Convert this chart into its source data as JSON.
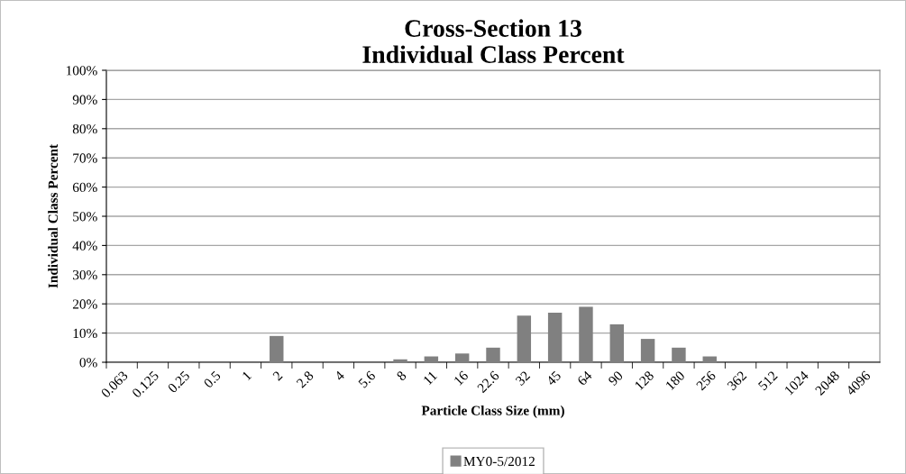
{
  "chart_data": {
    "type": "bar",
    "title": "Cross-Section 13\nIndividual Class Percent",
    "xlabel": "Particle Class Size (mm)",
    "ylabel": "Individual Class Percent",
    "categories": [
      "0.063",
      "0.125",
      "0.25",
      "0.5",
      "1",
      "2",
      "2.8",
      "4",
      "5.6",
      "8",
      "11",
      "16",
      "22.6",
      "32",
      "45",
      "64",
      "90",
      "128",
      "180",
      "256",
      "362",
      "512",
      "1024",
      "2048",
      "4096"
    ],
    "series": [
      {
        "name": "MY0-5/2012",
        "color": "#808080",
        "values": [
          0,
          0,
          0,
          0,
          0,
          9,
          0,
          0,
          0,
          1,
          2,
          3,
          5,
          16,
          17,
          19,
          13,
          8,
          5,
          2,
          0,
          0,
          0,
          0,
          0
        ]
      }
    ],
    "ylim": [
      0,
      100
    ],
    "yticks": [
      {
        "value": 0,
        "label": "0%"
      },
      {
        "value": 10,
        "label": "10%"
      },
      {
        "value": 20,
        "label": "20%"
      },
      {
        "value": 30,
        "label": "30%"
      },
      {
        "value": 40,
        "label": "40%"
      },
      {
        "value": 50,
        "label": "50%"
      },
      {
        "value": 60,
        "label": "60%"
      },
      {
        "value": 70,
        "label": "70%"
      },
      {
        "value": 80,
        "label": "80%"
      },
      {
        "value": 90,
        "label": "90%"
      },
      {
        "value": 100,
        "label": "100%"
      }
    ],
    "grid": "y",
    "legend": "bottom"
  }
}
